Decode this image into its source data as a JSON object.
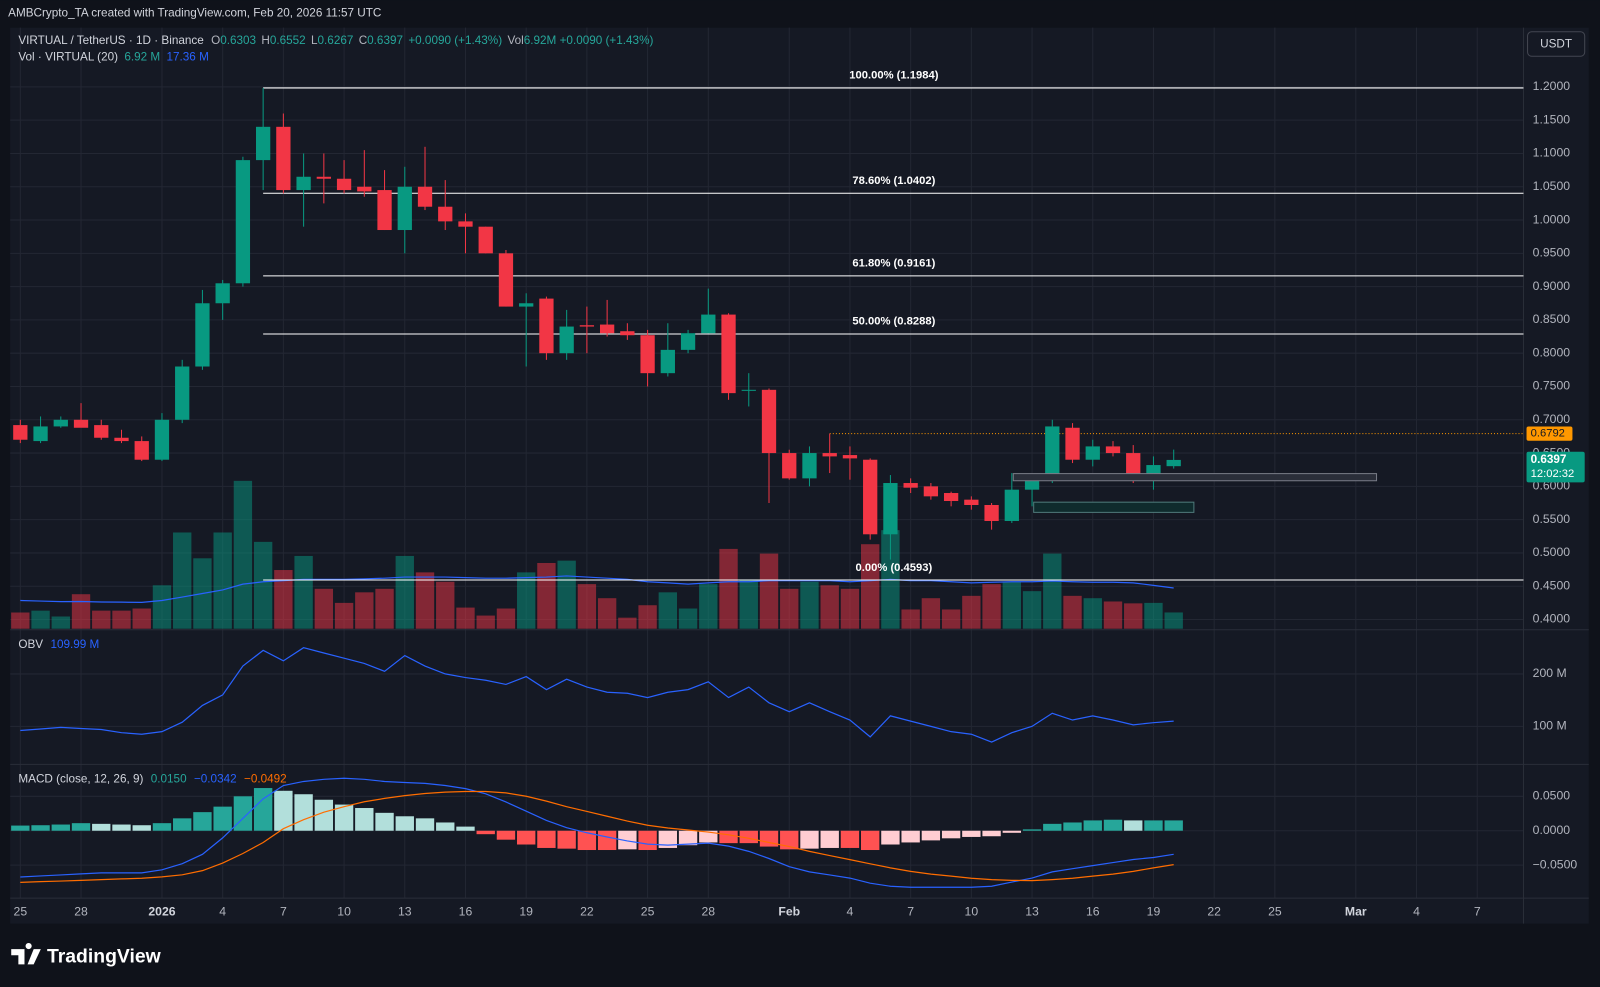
{
  "chart_data": {
    "type": "candlestick",
    "header": "AMBCrypto_TA created with TradingView.com, Feb 20, 2026 11:57 UTC",
    "legend": {
      "symbol": "VIRTUAL / TetherUS · 1D · Binance",
      "ohlc": [
        "O",
        "0.6303",
        "H",
        "0.6552",
        "L",
        "0.6267",
        "C",
        "0.6397"
      ],
      "change": "+0.0090 (+1.43%)",
      "vol": "Vol",
      "vol_value": "6.92M",
      "vol_change": "+0.0090 (+1.43%)"
    },
    "currency": "USDT",
    "brand": "TradingView",
    "up_color": "#089981",
    "down_color": "#f23645",
    "categories": [
      "25",
      null,
      null,
      "28",
      null,
      null,
      null,
      "2026",
      null,
      null,
      "4",
      null,
      null,
      "7",
      null,
      null,
      "10",
      null,
      null,
      "13",
      null,
      null,
      "16",
      null,
      null,
      "19",
      null,
      null,
      "22",
      null,
      null,
      "25",
      null,
      null,
      "28",
      null,
      null,
      null,
      "Feb",
      null,
      null,
      "4",
      null,
      null,
      "7",
      null,
      null,
      "10",
      null,
      null,
      "13",
      null,
      null,
      "16",
      null,
      null,
      "19",
      null,
      null,
      "22",
      null,
      null,
      "25",
      null,
      null,
      null,
      "Mar",
      null,
      null,
      "4",
      null,
      null,
      "7"
    ],
    "open": [
      0.692,
      0.668,
      0.69,
      0.7,
      0.692,
      0.673,
      0.668,
      0.64,
      0.7,
      0.78,
      0.875,
      0.905,
      1.09,
      1.14,
      1.045,
      1.065,
      1.062,
      1.05,
      1.045,
      0.985,
      1.05,
      1.02,
      0.998,
      0.99,
      0.95,
      0.87,
      0.882,
      0.8,
      0.842,
      0.843,
      0.833,
      0.827,
      0.77,
      0.805,
      0.83,
      0.858,
      0.745,
      0.745,
      0.65,
      0.612,
      0.65,
      0.647,
      0.64,
      0.528,
      0.605,
      0.6,
      0.59,
      0.58,
      0.572,
      0.548,
      0.595,
      0.61,
      0.688,
      0.64,
      0.66,
      0.65,
      0.612,
      0.6303,
      null,
      null,
      null,
      null,
      null,
      null,
      null,
      null,
      null,
      null,
      null,
      null,
      null,
      null,
      null
    ],
    "high": [
      0.7,
      0.705,
      0.705,
      0.725,
      0.7,
      0.685,
      0.675,
      0.71,
      0.79,
      0.895,
      0.91,
      1.095,
      1.1984,
      1.16,
      1.1,
      1.1,
      1.09,
      1.105,
      1.075,
      1.08,
      1.11,
      1.06,
      1.01,
      0.99,
      0.955,
      0.89,
      0.885,
      0.865,
      0.87,
      0.88,
      0.845,
      0.835,
      0.845,
      0.835,
      0.897,
      0.86,
      0.77,
      0.747,
      0.655,
      0.66,
      0.6792,
      0.66,
      0.642,
      0.617,
      0.612,
      0.605,
      0.592,
      0.585,
      0.575,
      0.62,
      0.615,
      0.7,
      0.695,
      0.67,
      0.668,
      0.662,
      0.645,
      0.6552,
      null,
      null,
      null,
      null,
      null,
      null,
      null,
      null,
      null,
      null,
      null,
      null,
      null,
      null,
      null
    ],
    "low": [
      0.665,
      0.665,
      0.688,
      0.69,
      0.67,
      0.665,
      0.638,
      0.638,
      0.695,
      0.775,
      0.85,
      0.9,
      1.045,
      1.04,
      0.99,
      1.025,
      1.04,
      1.035,
      0.985,
      0.95,
      1.015,
      0.985,
      0.95,
      0.95,
      0.87,
      0.78,
      0.79,
      0.79,
      0.8,
      0.825,
      0.82,
      0.75,
      0.765,
      0.8,
      0.83,
      0.73,
      0.72,
      0.575,
      0.61,
      0.6,
      0.62,
      0.61,
      0.52,
      0.49,
      0.59,
      0.58,
      0.57,
      0.565,
      0.535,
      0.545,
      0.57,
      0.605,
      0.635,
      0.63,
      0.645,
      0.605,
      0.595,
      0.6267,
      null,
      null,
      null,
      null,
      null,
      null,
      null,
      null,
      null,
      null,
      null,
      null,
      null,
      null,
      null
    ],
    "close": [
      0.67,
      0.69,
      0.7,
      0.688,
      0.673,
      0.668,
      0.64,
      0.7,
      0.78,
      0.875,
      0.905,
      1.09,
      1.14,
      1.045,
      1.065,
      1.062,
      1.045,
      1.043,
      0.985,
      1.05,
      1.02,
      0.998,
      0.99,
      0.95,
      0.87,
      0.875,
      0.8,
      0.84,
      0.84,
      0.83,
      0.827,
      0.77,
      0.805,
      0.83,
      0.858,
      0.74,
      0.745,
      0.65,
      0.612,
      0.65,
      0.645,
      0.642,
      0.528,
      0.605,
      0.598,
      0.585,
      0.578,
      0.572,
      0.548,
      0.595,
      0.61,
      0.69,
      0.64,
      0.66,
      0.65,
      0.612,
      0.632,
      0.6397,
      null,
      null,
      null,
      null,
      null,
      null,
      null,
      null,
      null,
      null,
      null,
      null,
      null,
      null,
      null
    ],
    "ylim": [
      0.3862,
      1.2889
    ],
    "yticks": [
      {
        "value": 0.4,
        "label": "0.4000"
      },
      {
        "value": 0.45,
        "label": "0.4500"
      },
      {
        "value": 0.5,
        "label": "0.5000"
      },
      {
        "value": 0.55,
        "label": "0.5500"
      },
      {
        "value": 0.6,
        "label": "0.6000"
      },
      {
        "value": 0.65,
        "label": "0.6500"
      },
      {
        "value": 0.7,
        "label": "0.7000"
      },
      {
        "value": 0.75,
        "label": "0.7500"
      },
      {
        "value": 0.8,
        "label": "0.8000"
      },
      {
        "value": 0.85,
        "label": "0.8500"
      },
      {
        "value": 0.9,
        "label": "0.9000"
      },
      {
        "value": 0.95,
        "label": "0.9500"
      },
      {
        "value": 1.0,
        "label": "1.0000"
      },
      {
        "value": 1.05,
        "label": "1.0500"
      },
      {
        "value": 1.1,
        "label": "1.1000"
      },
      {
        "value": 1.15,
        "label": "1.1500"
      },
      {
        "value": 1.2,
        "label": "1.2000"
      }
    ],
    "grid": true,
    "fib_levels": [
      {
        "value": 1.1984,
        "label": "100.00% (1.1984)"
      },
      {
        "value": 1.0402,
        "label": "78.60% (1.0402)"
      },
      {
        "value": 0.9161,
        "label": "61.80% (0.9161)"
      },
      {
        "value": 0.8288,
        "label": "50.00% (0.8288)"
      },
      {
        "value": 0.4593,
        "label": "0.00% (0.4593)"
      }
    ],
    "price_line": {
      "value": 0.6792,
      "label": "0.6792",
      "color": "#ff9800"
    },
    "last_price": {
      "label": "0.6397",
      "countdown": "12:02:32"
    },
    "volume": {
      "title": "Vol · VIRTUAL (20)",
      "legend_values": [
        "6.92 M",
        "17.36 M"
      ],
      "ma_color": "#2962ff",
      "ylim": [
        0,
        100
      ],
      "values": [
        6.9,
        7.7,
        5.2,
        14.7,
        7.7,
        7.7,
        8.6,
        18.5,
        41,
        30,
        41,
        63,
        37,
        25,
        31,
        17,
        11,
        15.5,
        17,
        31,
        24,
        20,
        9,
        5.6,
        8.6,
        24,
        28,
        29,
        19,
        13,
        4.7,
        10,
        15.5,
        8.6,
        19,
        34,
        21,
        32,
        17,
        20,
        18.5,
        17,
        36,
        42,
        8.2,
        13,
        8.2,
        14,
        19,
        20,
        16,
        32,
        14,
        13,
        11.6,
        10.8,
        11,
        6.92,
        null,
        null,
        null,
        null,
        null,
        null,
        null,
        null,
        null,
        null,
        null,
        null,
        null,
        null,
        null
      ],
      "ma": [
        12,
        11.8,
        11.5,
        11.6,
        11.4,
        11.3,
        11.2,
        12,
        13.5,
        15,
        16.5,
        19,
        20,
        20.5,
        21,
        21,
        21,
        21.2,
        21.5,
        22,
        22,
        22,
        21.8,
        21.5,
        21.5,
        21.8,
        22,
        22.5,
        22,
        21.5,
        21,
        20,
        19.5,
        19,
        19.5,
        20,
        20,
        20.5,
        20.5,
        20.5,
        20.5,
        20,
        20.5,
        21,
        20.5,
        20.5,
        20,
        19.5,
        19.8,
        20,
        20,
        20.3,
        20,
        19.8,
        19.8,
        19.5,
        18.5,
        17.36,
        null,
        null,
        null,
        null,
        null,
        null,
        null,
        null,
        null,
        null,
        null,
        null,
        null,
        null,
        null
      ]
    },
    "obv": {
      "title": "OBV",
      "legend_value": "109.99 M",
      "color": "#2962ff",
      "ylim": [
        29.4,
        284.3
      ],
      "yticks": [
        {
          "value": 100,
          "label": "100 M"
        },
        {
          "value": 200,
          "label": "200 M"
        }
      ],
      "values": [
        92,
        95,
        98,
        96,
        94,
        88,
        85,
        90,
        108,
        140,
        160,
        215,
        245,
        225,
        250,
        240,
        230,
        220,
        205,
        235,
        215,
        200,
        193,
        188,
        180,
        195,
        170,
        190,
        175,
        165,
        163,
        155,
        165,
        170,
        185,
        155,
        175,
        145,
        128,
        145,
        128,
        112,
        80,
        120,
        110,
        100,
        90,
        85,
        70,
        88,
        100,
        125,
        112,
        120,
        112,
        103,
        107,
        109.99,
        null,
        null,
        null,
        null,
        null,
        null,
        null,
        null,
        null,
        null,
        null,
        null,
        null,
        null,
        null
      ]
    },
    "macd": {
      "title": "MACD (close, 12, 26, 9)",
      "legend_values": [
        "0.0150",
        "−0.0342",
        "−0.0492"
      ],
      "macd_color": "#2962ff",
      "signal_color": "#ff6d00",
      "hist_colors": {
        "pos_up": "#26a69a",
        "pos_down": "#b2dfdb",
        "neg_down": "#ff5252",
        "neg_up": "#ffcdd2"
      },
      "ylim": [
        -0.0978,
        0.0963
      ],
      "yticks": [
        {
          "value": -0.05,
          "label": "−0.0500"
        },
        {
          "value": 0,
          "label": "0.0000"
        },
        {
          "value": 0.05,
          "label": "0.0500"
        }
      ],
      "histogram": [
        0.0075,
        0.008,
        0.009,
        0.011,
        0.01,
        0.009,
        0.008,
        0.011,
        0.018,
        0.027,
        0.035,
        0.05,
        0.062,
        0.058,
        0.053,
        0.045,
        0.038,
        0.033,
        0.026,
        0.021,
        0.018,
        0.012,
        0.006,
        -0.005,
        -0.013,
        -0.02,
        -0.025,
        -0.026,
        -0.028,
        -0.028,
        -0.027,
        -0.028,
        -0.025,
        -0.021,
        -0.017,
        -0.018,
        -0.018,
        -0.023,
        -0.027,
        -0.026,
        -0.025,
        -0.025,
        -0.028,
        -0.02,
        -0.017,
        -0.014,
        -0.011,
        -0.009,
        -0.008,
        -0.003,
        0.002,
        0.01,
        0.012,
        0.015,
        0.016,
        0.015,
        0.015,
        0.015,
        null,
        null,
        null,
        null,
        null,
        null,
        null,
        null,
        null,
        null,
        null,
        null,
        null,
        null,
        null
      ],
      "macd": [
        -0.0672,
        -0.0657,
        -0.0642,
        -0.0627,
        -0.0612,
        -0.0612,
        -0.0612,
        -0.0567,
        -0.0478,
        -0.0343,
        -0.0104,
        0.0179,
        0.0463,
        0.0657,
        0.0716,
        0.0746,
        0.0761,
        0.0746,
        0.0716,
        0.0701,
        0.0687,
        0.0657,
        0.0612,
        0.0537,
        0.0418,
        0.0284,
        0.0149,
        0.0045,
        -0.003,
        -0.009,
        -0.0149,
        -0.0194,
        -0.0209,
        -0.0194,
        -0.0179,
        -0.0224,
        -0.0299,
        -0.0403,
        -0.0522,
        -0.0597,
        -0.0642,
        -0.0687,
        -0.0761,
        -0.0806,
        -0.0821,
        -0.0821,
        -0.0821,
        -0.0821,
        -0.0806,
        -0.0746,
        -0.0687,
        -0.0597,
        -0.0552,
        -0.0507,
        -0.0463,
        -0.0418,
        -0.0388,
        -0.0342,
        null,
        null,
        null,
        null,
        null,
        null,
        null,
        null,
        null,
        null,
        null,
        null,
        null,
        null,
        null
      ],
      "signal": [
        -0.075,
        -0.074,
        -0.073,
        -0.072,
        -0.071,
        -0.07,
        -0.069,
        -0.067,
        -0.064,
        -0.058,
        -0.047,
        -0.033,
        -0.017,
        0.003,
        0.016,
        0.027,
        0.035,
        0.042,
        0.047,
        0.051,
        0.054,
        0.056,
        0.057,
        0.057,
        0.055,
        0.05,
        0.043,
        0.035,
        0.028,
        0.021,
        0.014,
        0.008,
        0.004,
        0.001,
        -0.002,
        -0.006,
        -0.011,
        -0.017,
        -0.023,
        -0.03,
        -0.036,
        -0.042,
        -0.048,
        -0.054,
        -0.059,
        -0.063,
        -0.066,
        -0.069,
        -0.071,
        -0.072,
        -0.0725,
        -0.071,
        -0.069,
        -0.066,
        -0.063,
        -0.059,
        -0.054,
        -0.0492,
        null,
        null,
        null,
        null,
        null,
        null,
        null,
        null,
        null,
        null,
        null,
        null,
        null,
        null,
        null
      ]
    }
  }
}
